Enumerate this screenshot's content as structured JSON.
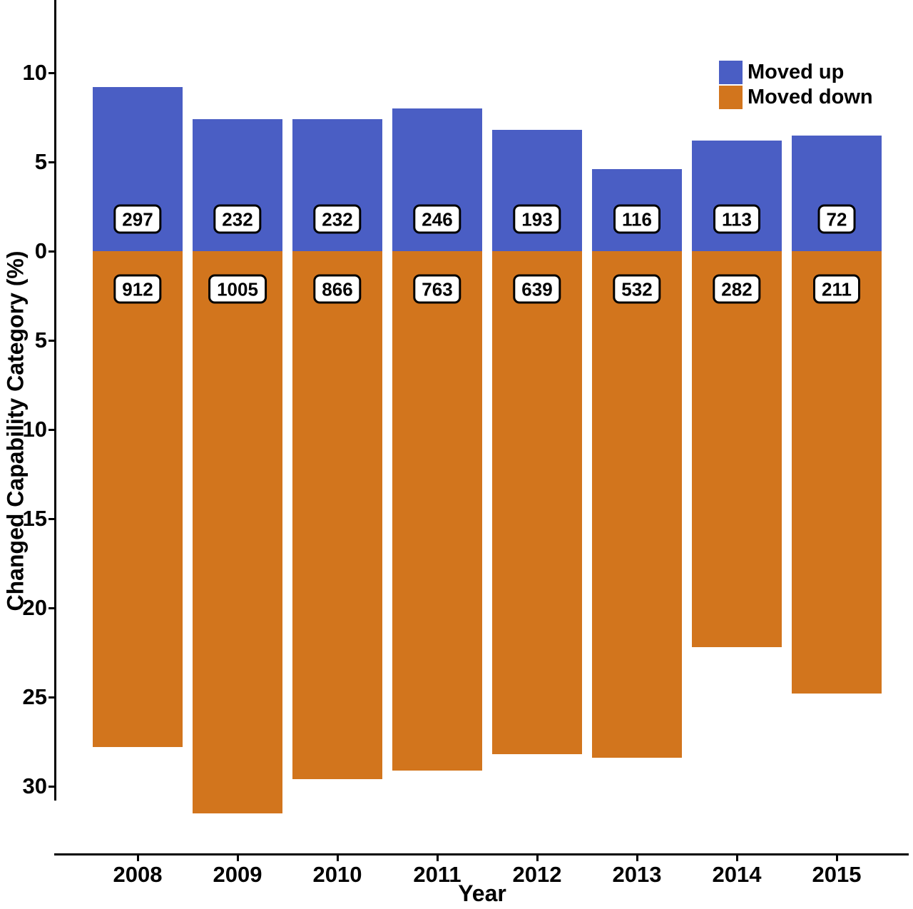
{
  "axes": {
    "x_label": "Year",
    "y_label": "Changed Capability Category (%)"
  },
  "legend": {
    "entries": [
      "Moved up",
      "Moved down"
    ]
  },
  "chart_data": {
    "type": "bar",
    "subtype": "diverging-stacked",
    "title": "",
    "xlabel": "Year",
    "ylabel": "Changed Capability Category (%)",
    "categories": [
      "2008",
      "2009",
      "2010",
      "2011",
      "2012",
      "2013",
      "2014",
      "2015"
    ],
    "series": [
      {
        "name": "Moved up",
        "direction": "up",
        "color": "#4A5EC4",
        "values_percent": [
          9.2,
          7.4,
          7.4,
          8.0,
          6.8,
          4.6,
          6.2,
          6.5
        ],
        "counts": [
          297,
          232,
          232,
          246,
          193,
          116,
          113,
          72
        ]
      },
      {
        "name": "Moved down",
        "direction": "down",
        "color": "#D2751D",
        "values_percent": [
          27.8,
          31.5,
          29.6,
          29.1,
          28.2,
          28.4,
          22.2,
          24.8
        ],
        "counts": [
          912,
          1005,
          866,
          763,
          639,
          532,
          282,
          211
        ]
      }
    ],
    "y_axis": {
      "tick_labels_shown_absolute": true,
      "ticks": [
        {
          "label": "10",
          "value": 10
        },
        {
          "label": "5",
          "value": 5
        },
        {
          "label": "0",
          "value": 0
        },
        {
          "label": "5",
          "value": -5
        },
        {
          "label": "10",
          "value": -10
        },
        {
          "label": "15",
          "value": -15
        },
        {
          "label": "20",
          "value": -20
        },
        {
          "label": "25",
          "value": -25
        },
        {
          "label": "30",
          "value": -30
        }
      ],
      "ylim": [
        -33.8,
        14.1
      ]
    },
    "grid": false,
    "legend_position": "top-right",
    "label_boxes": {
      "style": "white rounded rectangle with black border",
      "up_row_counts": [
        297,
        232,
        232,
        246,
        193,
        116,
        113,
        72
      ],
      "down_row_counts": [
        912,
        1005,
        866,
        763,
        639,
        532,
        282,
        211
      ]
    }
  }
}
